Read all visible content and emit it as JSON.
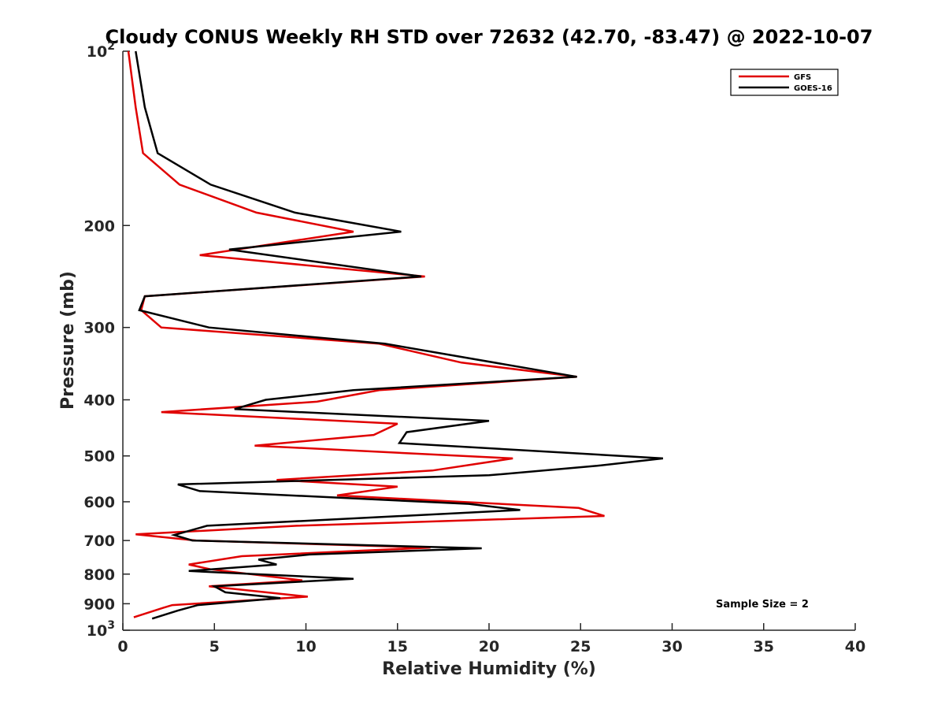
{
  "chart_data": {
    "type": "line",
    "title": "Cloudy CONUS Weekly RH STD over 72632 (42.70, -83.47) @ 2022-10-07",
    "xlabel": "Relative Humidity (%)",
    "ylabel": "Pressure (mb)",
    "xlim": [
      0,
      40
    ],
    "ylim": [
      100,
      1000
    ],
    "y_scale": "log",
    "y_reversed": true,
    "x_ticks": [
      "0",
      "5",
      "10",
      "15",
      "20",
      "25",
      "30",
      "35",
      "40"
    ],
    "x_tick_values": [
      0,
      5,
      10,
      15,
      20,
      25,
      30,
      35,
      40
    ],
    "y_ticks": [
      {
        "value": 100,
        "base": "10",
        "exp": "2",
        "text": ""
      },
      {
        "value": 200,
        "base": "",
        "exp": "",
        "text": "200"
      },
      {
        "value": 300,
        "base": "",
        "exp": "",
        "text": "300"
      },
      {
        "value": 400,
        "base": "",
        "exp": "",
        "text": "400"
      },
      {
        "value": 500,
        "base": "",
        "exp": "",
        "text": "500"
      },
      {
        "value": 600,
        "base": "",
        "exp": "",
        "text": "600"
      },
      {
        "value": 700,
        "base": "",
        "exp": "",
        "text": "700"
      },
      {
        "value": 800,
        "base": "",
        "exp": "",
        "text": "800"
      },
      {
        "value": 900,
        "base": "",
        "exp": "",
        "text": "900"
      },
      {
        "value": 1000,
        "base": "10",
        "exp": "3",
        "text": ""
      }
    ],
    "grid": false,
    "legend_position": "top-right",
    "annotation": "Sample Size = 2",
    "series": [
      {
        "name": "GFS",
        "color": "#e00000",
        "points": [
          [
            0.3,
            100
          ],
          [
            0.7,
            125
          ],
          [
            1.1,
            150
          ],
          [
            3.1,
            170
          ],
          [
            7.3,
            190
          ],
          [
            12.6,
            205
          ],
          [
            4.2,
            225
          ],
          [
            16.5,
            245
          ],
          [
            1.2,
            265
          ],
          [
            1.0,
            280
          ],
          [
            2.1,
            300
          ],
          [
            14.0,
            320
          ],
          [
            18.5,
            345
          ],
          [
            24.8,
            365
          ],
          [
            14.0,
            385
          ],
          [
            10.6,
            403
          ],
          [
            2.1,
            420
          ],
          [
            15.0,
            440
          ],
          [
            13.7,
            460
          ],
          [
            7.2,
            480
          ],
          [
            21.3,
            505
          ],
          [
            16.9,
            530
          ],
          [
            8.4,
            550
          ],
          [
            15.0,
            565
          ],
          [
            11.7,
            585
          ],
          [
            24.9,
            615
          ],
          [
            26.3,
            635
          ],
          [
            9.5,
            660
          ],
          [
            0.7,
            683
          ],
          [
            4.0,
            700
          ],
          [
            16.8,
            720
          ],
          [
            6.5,
            745
          ],
          [
            3.6,
            770
          ],
          [
            4.8,
            785
          ],
          [
            9.8,
            820
          ],
          [
            4.7,
            840
          ],
          [
            10.1,
            875
          ],
          [
            6.4,
            890
          ],
          [
            2.7,
            905
          ],
          [
            2.2,
            915
          ],
          [
            0.6,
            950
          ]
        ]
      },
      {
        "name": "GOES-16",
        "color": "#000000",
        "points": [
          [
            0.7,
            100
          ],
          [
            1.2,
            125
          ],
          [
            1.9,
            150
          ],
          [
            4.8,
            170
          ],
          [
            9.4,
            190
          ],
          [
            15.2,
            205
          ],
          [
            5.8,
            220
          ],
          [
            16.3,
            245
          ],
          [
            1.2,
            265
          ],
          [
            0.9,
            280
          ],
          [
            4.7,
            300
          ],
          [
            14.3,
            320
          ],
          [
            24.8,
            365
          ],
          [
            12.6,
            385
          ],
          [
            7.8,
            400
          ],
          [
            6.1,
            415
          ],
          [
            20.0,
            435
          ],
          [
            15.5,
            455
          ],
          [
            15.1,
            475
          ],
          [
            29.5,
            505
          ],
          [
            25.9,
            520
          ],
          [
            20.0,
            540
          ],
          [
            3.0,
            560
          ],
          [
            4.2,
            575
          ],
          [
            18.9,
            605
          ],
          [
            21.7,
            620
          ],
          [
            4.6,
            660
          ],
          [
            2.8,
            685
          ],
          [
            3.8,
            700
          ],
          [
            19.6,
            722
          ],
          [
            10.2,
            740
          ],
          [
            7.4,
            755
          ],
          [
            8.4,
            770
          ],
          [
            3.6,
            790
          ],
          [
            12.6,
            815
          ],
          [
            5.0,
            840
          ],
          [
            5.6,
            860
          ],
          [
            8.6,
            880
          ],
          [
            4.1,
            905
          ],
          [
            3.0,
            925
          ],
          [
            1.6,
            955
          ]
        ]
      }
    ]
  }
}
